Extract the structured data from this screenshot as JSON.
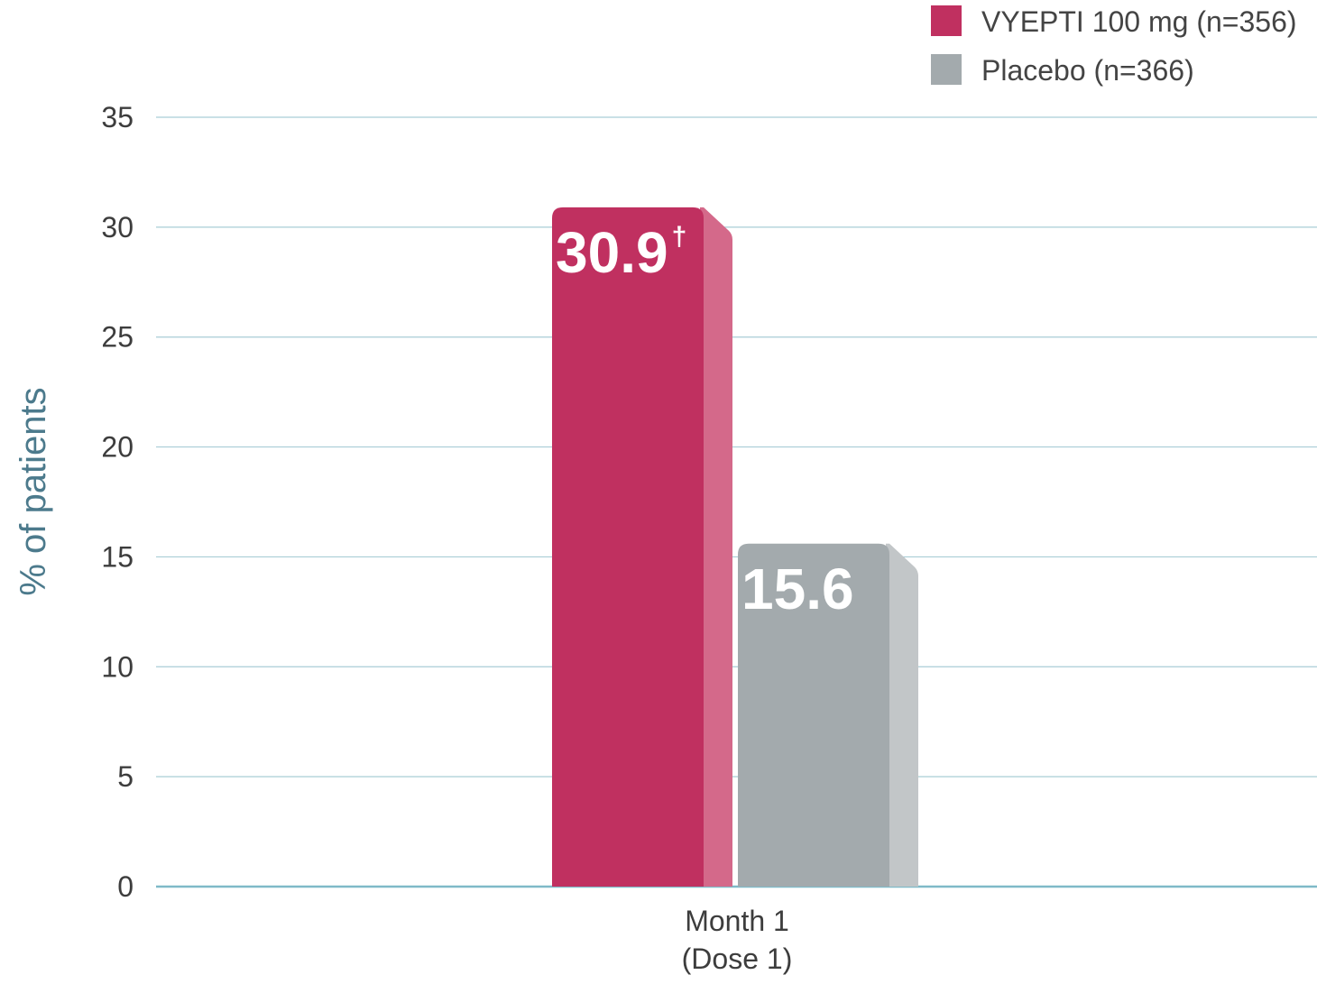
{
  "chart_data": {
    "type": "bar",
    "categories": [
      "Month 1\n(Dose 1)"
    ],
    "category_lines": [
      [
        "Month 1",
        "(Dose 1)"
      ]
    ],
    "series": [
      {
        "name": "VYEPTI 100 mg (n=356)",
        "values": [
          30.9
        ],
        "labels": [
          "30.9"
        ],
        "label_suffix": "†",
        "color": "#c03060",
        "side_color": "#d4698a"
      },
      {
        "name": "Placebo (n=366)",
        "values": [
          15.6
        ],
        "labels": [
          "15.6"
        ],
        "label_suffix": "",
        "color": "#a3aaad",
        "side_color": "#c2c6c8"
      }
    ],
    "ylabel": "% of patients",
    "xlabel": "",
    "ylim": [
      0,
      35
    ],
    "yticks": [
      0,
      5,
      10,
      15,
      20,
      25,
      30,
      35
    ],
    "grid": true,
    "grid_color": "#a9cdd6",
    "axis_color": "#7fbac8",
    "legend_position": "top-right"
  }
}
